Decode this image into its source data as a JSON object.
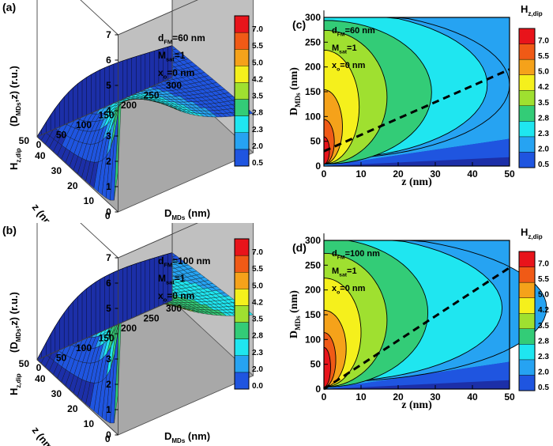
{
  "colors": {
    "levels": [
      "#1c2fa8",
      "#1f55e0",
      "#26a3f2",
      "#1fe6f0",
      "#33cc77",
      "#9fe030",
      "#f5f01c",
      "#f5a21a",
      "#f05a16",
      "#e8141b"
    ],
    "dark_blue": "#1c2fa8",
    "blue": "#1f55e0",
    "cyan": "#1fe6f0",
    "red": "#e8141b",
    "wall_gray": "#c0c0c0"
  },
  "chart_data": [
    {
      "panel": "(a)",
      "type": "surface3d",
      "zlabel": "H_z,dip(D_MDs, z) (r.u.)",
      "xlabel": "z (nm)",
      "ylabel": "D_MDs (nm)",
      "z_ticks": [
        "0",
        "1",
        "2",
        "3",
        "4",
        "5",
        "6",
        "7"
      ],
      "x_ticks": [
        "0",
        "10",
        "20",
        "30",
        "40",
        "50"
      ],
      "y_ticks": [
        "0",
        "50",
        "100",
        "150",
        "200",
        "250",
        "300"
      ],
      "x_range": [
        0,
        50
      ],
      "y_range": [
        0,
        300
      ],
      "z_range": [
        0,
        7
      ],
      "annotations": [
        "d_FM=60 nm",
        "M_sat=1",
        "x_o=0 nm"
      ],
      "colorbar_labels": [
        "7.0",
        "5.5",
        "5.0",
        "4.2",
        "3.5",
        "2.8",
        "2.3",
        "2.0",
        "0.5"
      ],
      "params": {
        "d_FM": 60,
        "peak": 6.1
      }
    },
    {
      "panel": "(c)",
      "type": "contour",
      "title": "H_z,dip",
      "xlabel": "z (nm)",
      "ylabel": "D_MDs (nm)",
      "x_ticks": [
        "0",
        "10",
        "20",
        "30",
        "40",
        "50"
      ],
      "y_ticks": [
        "0",
        "50",
        "100",
        "150",
        "200",
        "250",
        "300"
      ],
      "x_range": [
        0,
        50
      ],
      "y_range": [
        0,
        300
      ],
      "annotations": [
        "d_FM=60 nm",
        "M_sat=1",
        "x_o=0 nm"
      ],
      "colorbar_labels": [
        "7.0",
        "5.5",
        "5.0",
        "4.2",
        "3.5",
        "2.8",
        "2.3",
        "2.0",
        "0.5"
      ],
      "levels": [
        0.5,
        2.0,
        2.3,
        2.8,
        3.5,
        4.2,
        5.0,
        5.5,
        7.0
      ],
      "boundary_z": [
        50,
        44,
        29,
        17,
        9.5,
        5,
        2.8,
        1.5
      ],
      "dashed_line": {
        "x": [
          0,
          50
        ],
        "y": [
          30,
          195
        ]
      },
      "params": {
        "d_FM": 60
      }
    },
    {
      "panel": "(b)",
      "type": "surface3d",
      "zlabel": "H_z,dip(D_MDs, z) (r.u.)",
      "xlabel": "z (nm)",
      "ylabel": "D_MDs (nm)",
      "z_ticks": [
        "0",
        "1",
        "2",
        "3",
        "4",
        "5",
        "6",
        "7"
      ],
      "x_ticks": [
        "0",
        "10",
        "20",
        "30",
        "40",
        "50"
      ],
      "y_ticks": [
        "0",
        "50",
        "100",
        "150",
        "200",
        "250",
        "300"
      ],
      "x_range": [
        0,
        50
      ],
      "y_range": [
        0,
        300
      ],
      "z_range": [
        0,
        7
      ],
      "annotations": [
        "d_FM=100 nm",
        "M_sat=1",
        "x_o=0 nm"
      ],
      "colorbar_labels": [
        "7.0",
        "5.5",
        "5.0",
        "4.2",
        "3.5",
        "2.8",
        "2.3",
        "2.0",
        "0.0"
      ],
      "params": {
        "d_FM": 100,
        "peak": 6.2
      }
    },
    {
      "panel": "(d)",
      "type": "contour",
      "title": "H_z,dip",
      "xlabel": "z (nm)",
      "ylabel": "D_MDs (nm)",
      "x_ticks": [
        "0",
        "10",
        "20",
        "30",
        "40",
        "50"
      ],
      "y_ticks": [
        "0",
        "50",
        "100",
        "150",
        "200",
        "250",
        "300"
      ],
      "x_range": [
        0,
        50
      ],
      "y_range": [
        0,
        300
      ],
      "annotations": [
        "d_FM=100 nm",
        "M_sat=1",
        "x_o=0 nm"
      ],
      "colorbar_labels": [
        "7.0",
        "5.5",
        "5.0",
        "4.2",
        "3.5",
        "2.8",
        "2.3",
        "2.0",
        "0.5"
      ],
      "levels": [
        0.5,
        2.0,
        2.3,
        2.8,
        3.5,
        4.2,
        5.0,
        5.5,
        7.0
      ],
      "boundary_z": [
        60,
        48,
        28,
        17,
        10,
        6,
        3.2,
        1.8
      ],
      "dashed_line": {
        "x": [
          0,
          50
        ],
        "y": [
          0,
          245
        ]
      },
      "params": {
        "d_FM": 100
      }
    }
  ]
}
